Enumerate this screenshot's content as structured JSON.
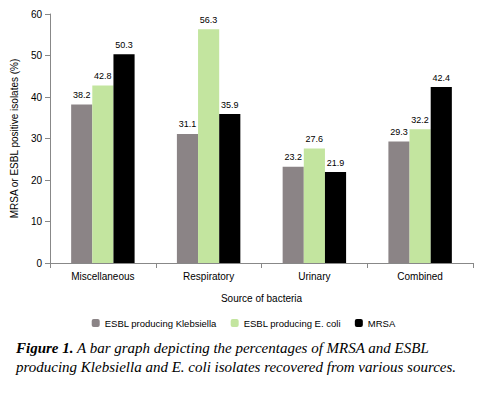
{
  "chart_data": {
    "type": "bar",
    "categories": [
      "Miscellaneous",
      "Respiratory",
      "Urinary",
      "Combined"
    ],
    "series": [
      {
        "name": "ESBL producing Klebsiella",
        "color": "#8b8486",
        "values": [
          38.2,
          31.1,
          23.2,
          29.3
        ]
      },
      {
        "name": "ESBL producing E. coli",
        "color": "#c3e59f",
        "values": [
          42.8,
          56.3,
          27.6,
          32.2
        ]
      },
      {
        "name": "MRSA",
        "color": "#000000",
        "values": [
          50.3,
          35.9,
          21.9,
          42.4
        ]
      }
    ],
    "xlabel": "Source of bacteria",
    "ylabel": "MRSA or ESBL positive isolates (%)",
    "ylim": [
      0,
      60
    ],
    "yticks": [
      0,
      10,
      20,
      30,
      40,
      50,
      60
    ],
    "grid": false,
    "legend": "bottom",
    "data_labels": true,
    "caption_label": "Figure 1.",
    "caption": "A bar graph depicting the percentages of MRSA and ESBL producing Klebsiella and E. coli isolates recovered from various sources."
  }
}
